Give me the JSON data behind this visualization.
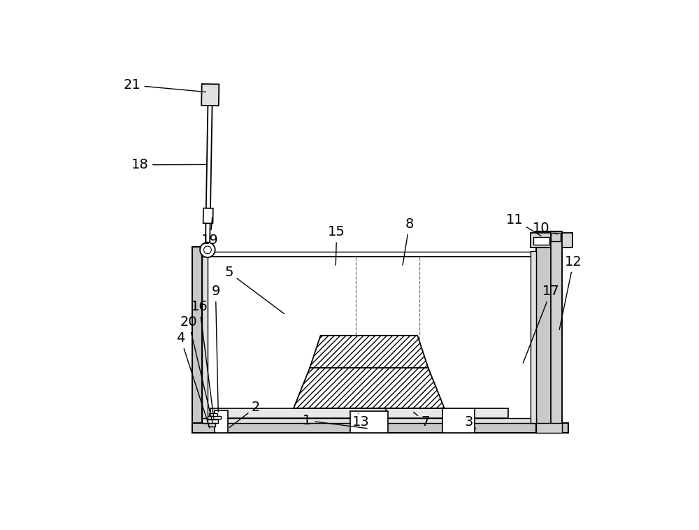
{
  "bg_color": "#ffffff",
  "fig_width": 10.0,
  "fig_height": 7.58,
  "dpi": 100
}
